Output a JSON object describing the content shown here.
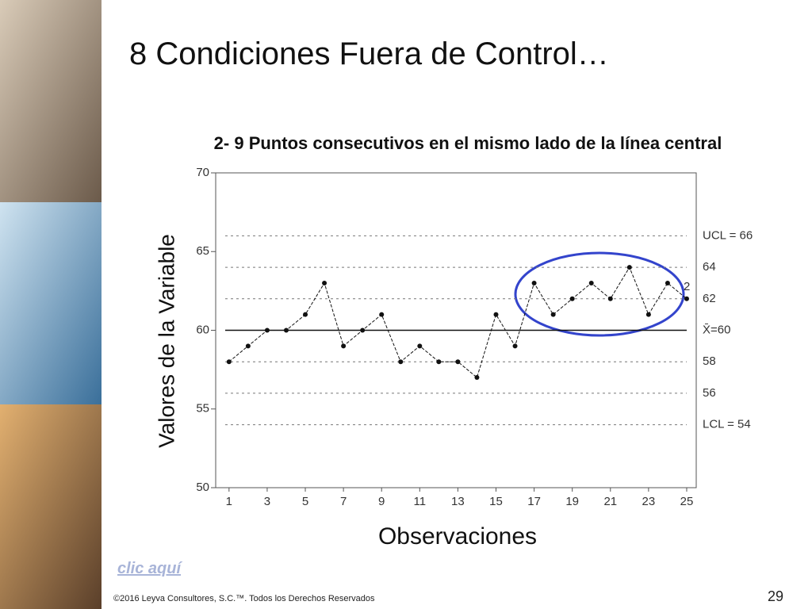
{
  "title": "8 Condiciones Fuera de Control…",
  "link": "clic aquí",
  "footer": "©2016 Leyva Consultores, S.C.™. Todos los Derechos Reservados",
  "page_number": "29",
  "chart_data": {
    "type": "line",
    "title": "2- 9 Puntos consecutivos en el mismo lado de la línea central",
    "x_label": "Observaciones",
    "y_label": "Valores de la Variable",
    "x": [
      1,
      2,
      3,
      4,
      5,
      6,
      7,
      8,
      9,
      10,
      11,
      12,
      13,
      14,
      15,
      16,
      17,
      18,
      19,
      20,
      21,
      22,
      23,
      24,
      25
    ],
    "series": [
      {
        "color": "#111111",
        "values": [
          58,
          59,
          60,
          60,
          61,
          63,
          59,
          60,
          61,
          58,
          59,
          58,
          58,
          57,
          61,
          59,
          63,
          61,
          62,
          63,
          62,
          64,
          61,
          63,
          62
        ]
      }
    ],
    "xlim": [
      0.3,
      25.5
    ],
    "xticks": [
      1,
      3,
      5,
      7,
      9,
      11,
      13,
      15,
      17,
      19,
      21,
      23,
      25
    ],
    "ylim": [
      50,
      70
    ],
    "yticks": [
      50,
      55,
      60,
      65,
      70
    ],
    "reference_lines": [
      {
        "value": 66,
        "label": "UCL = 66",
        "style": "dashed"
      },
      {
        "value": 64,
        "label": "64",
        "style": "dashed"
      },
      {
        "value": 62,
        "label": "62",
        "style": "dashed"
      },
      {
        "value": 60,
        "label": "X̄=60",
        "style": "solid"
      },
      {
        "value": 58,
        "label": "58",
        "style": "dashed"
      },
      {
        "value": 56,
        "label": "56",
        "style": "dashed"
      },
      {
        "value": 54,
        "label": "LCL = 54",
        "style": "dashed"
      }
    ],
    "annotation": "2"
  }
}
